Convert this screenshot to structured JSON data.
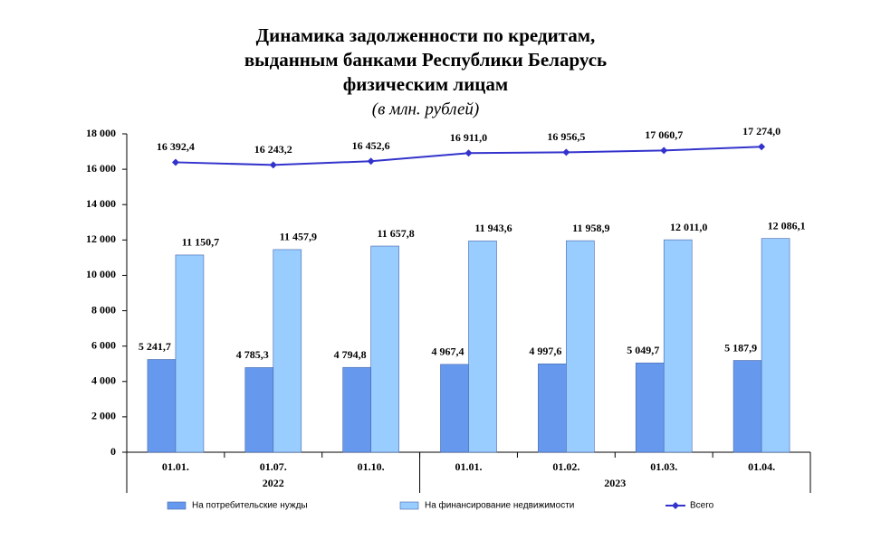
{
  "chart_data": {
    "type": "combo",
    "title_lines": [
      "Динамика задолженности по кредитам,",
      "выданным банками Республики Беларусь",
      "физическим лицам"
    ],
    "subtitle": "(в млн. рублей)",
    "categories": [
      "01.01.",
      "01.07.",
      "01.10.",
      "01.01.",
      "01.02.",
      "01.03.",
      "01.04."
    ],
    "category_groups": [
      {
        "label": "2022",
        "size": 3
      },
      {
        "label": "2023",
        "size": 4
      }
    ],
    "ylim": [
      0,
      18000
    ],
    "yticks": [
      0,
      {
        "value": 2000,
        "label": "2 000"
      },
      {
        "value": 4000,
        "label": "4 000"
      },
      {
        "value": 6000,
        "label": "6 000"
      },
      {
        "value": 8000,
        "label": "8 000"
      },
      {
        "value": 10000,
        "label": "10 000"
      },
      {
        "value": 12000,
        "label": "12 000"
      },
      {
        "value": 14000,
        "label": "14 000"
      },
      {
        "value": 16000,
        "label": "16 000"
      },
      {
        "value": 18000,
        "label": "18 000"
      }
    ],
    "series": [
      {
        "name": "На потребительские нужды",
        "type": "bar",
        "color": "#6699ee",
        "values": [
          5241.7,
          4785.3,
          4794.8,
          4967.4,
          4997.6,
          5049.7,
          5187.9
        ],
        "value_labels": [
          "5 241,7",
          "4 785,3",
          "4 794,8",
          "4 967,4",
          "4 997,6",
          "5 049,7",
          "5 187,9"
        ]
      },
      {
        "name": "На финансирование недвижимости",
        "type": "bar",
        "color": "#99ccff",
        "values": [
          11150.7,
          11457.9,
          11657.8,
          11943.6,
          11958.9,
          12011.0,
          12086.1
        ],
        "value_labels": [
          "11 150,7",
          "11 457,9",
          "11 657,8",
          "11 943,6",
          "11 958,9",
          "12 011,0",
          "12 086,1"
        ]
      },
      {
        "name": "Всего",
        "type": "line",
        "color": "#3333cc",
        "values": [
          16392.4,
          16243.2,
          16452.6,
          16911.0,
          16956.5,
          17060.7,
          17274.0
        ],
        "value_labels": [
          "16 392,4",
          "16 243,2",
          "16 452,6",
          "16 911,0",
          "16 956,5",
          "17 060,7",
          "17 274,0"
        ]
      }
    ]
  }
}
